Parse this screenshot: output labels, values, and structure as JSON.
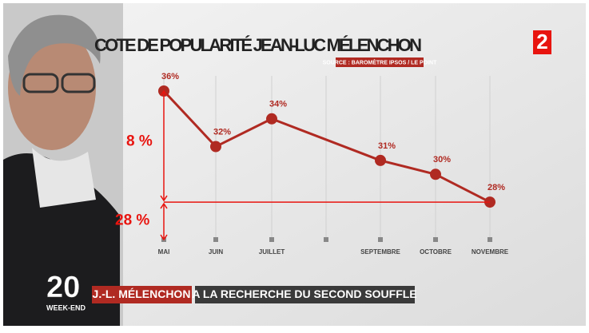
{
  "chart_data": {
    "type": "line",
    "title": "COTE DE POPULARITÉ JEAN-LUC MÉLENCHON",
    "subtitle": "SOURCE : BAROMÈTRE IPSOS / LE POINT",
    "categories": [
      "MAI",
      "JUIN",
      "JUILLET",
      null,
      "SEPTEMBRE",
      "OCTOBRE",
      "NOVEMBRE"
    ],
    "series": [
      {
        "color": "#b02a22",
        "values": [
          36,
          32,
          34,
          null,
          31,
          30,
          28
        ],
        "value_labels": [
          "36%",
          "32%",
          "34%",
          null,
          "31%",
          "30%",
          "28%"
        ]
      }
    ],
    "ylim": [
      25.3,
      36
    ],
    "annotations": [
      {
        "text": "8 %",
        "color": "#e8140f"
      },
      {
        "text": "28 %",
        "color": "#e8140f"
      }
    ]
  },
  "logo": "2",
  "banner": {
    "number": "20",
    "sub": "WEEK-END",
    "name": "J.-L. MÉLENCHON",
    "headline": "A LA RECHERCHE DU SECOND SOUFFLE"
  }
}
